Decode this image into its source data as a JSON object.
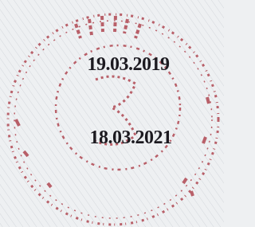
{
  "stamp": {
    "dates": [
      "19.03.2019",
      "18.03.2021"
    ]
  }
}
